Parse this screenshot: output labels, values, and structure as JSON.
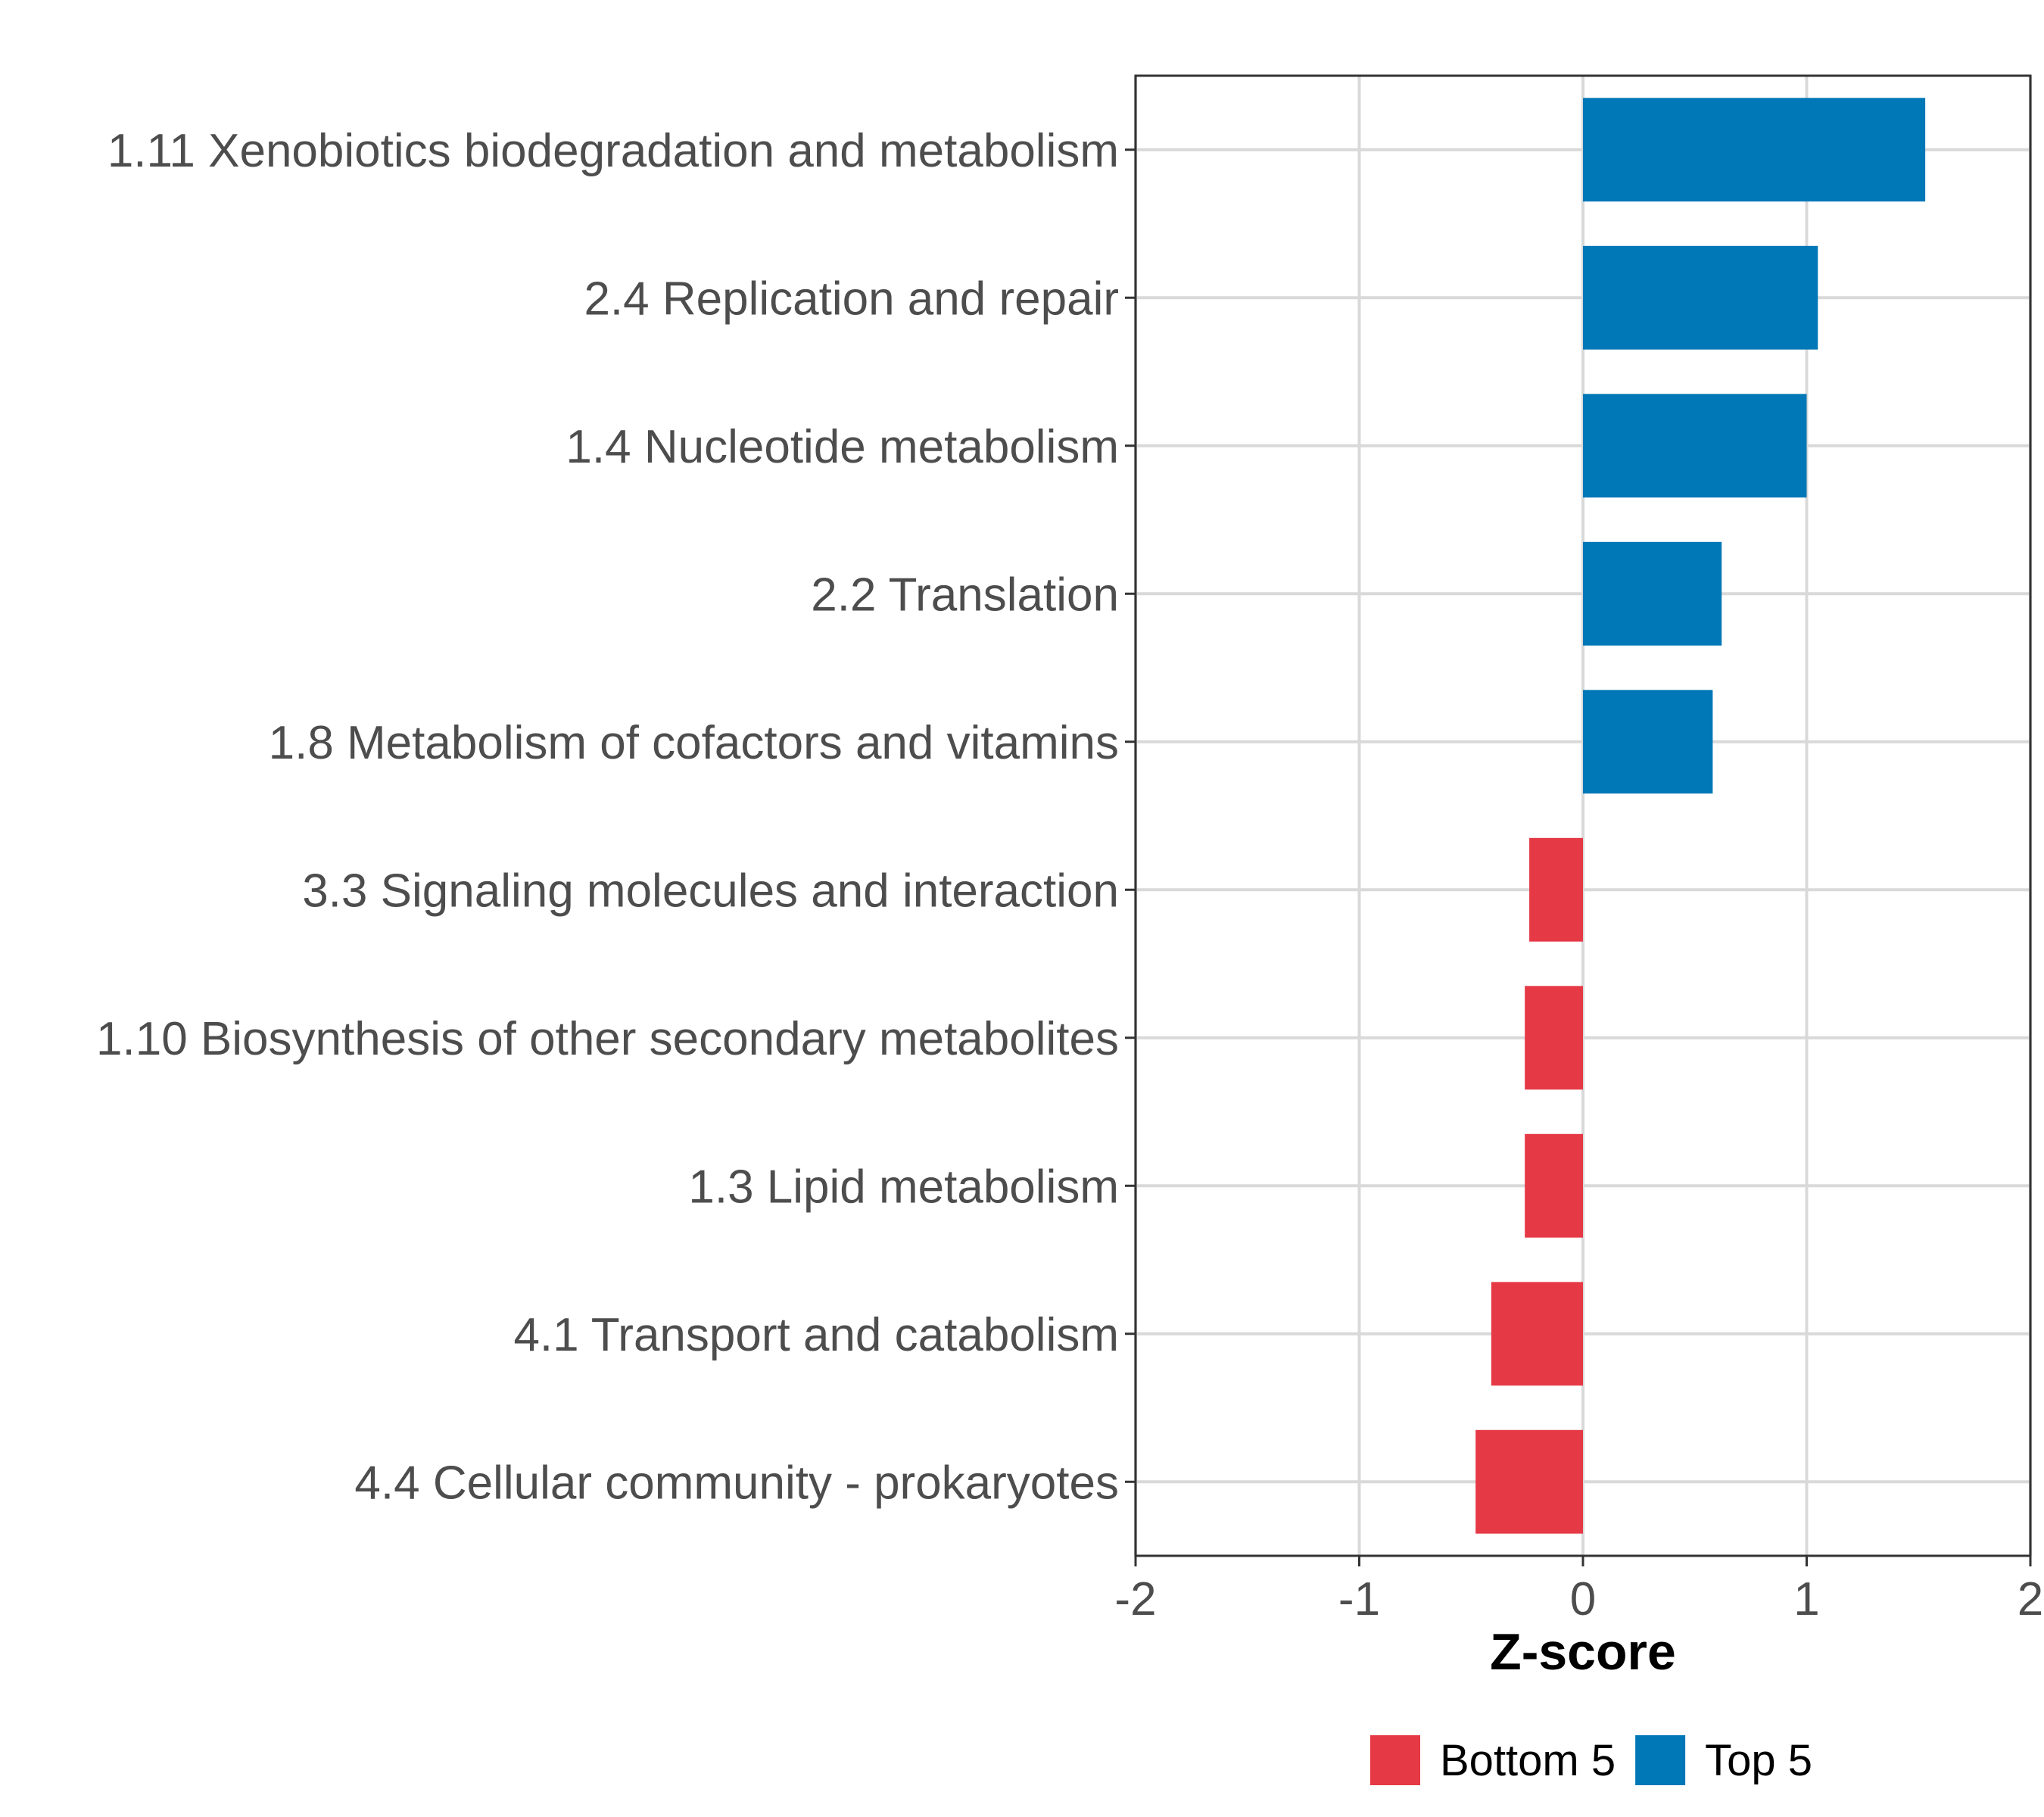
{
  "chart_data": {
    "type": "bar",
    "orientation": "horizontal",
    "title": "",
    "xlabel": "Z-score",
    "ylabel": "",
    "xlim": [
      -2,
      2
    ],
    "xticks": [
      -2,
      -1,
      0,
      1,
      2
    ],
    "xtick_labels": [
      "-2",
      "-1",
      "0",
      "1",
      "2"
    ],
    "grid": true,
    "legend_position": "bottom",
    "categories": [
      "1.11 Xenobiotics biodegradation and metabolism",
      "2.4 Replication and repair",
      "1.4 Nucleotide metabolism",
      "2.2 Translation",
      "1.8 Metabolism of cofactors and vitamins",
      "3.3 Signaling molecules and interaction",
      "1.10 Biosynthesis of other secondary metabolites",
      "1.3 Lipid metabolism",
      "4.1 Transport and catabolism",
      "4.4 Cellular community - prokaryotes"
    ],
    "values": [
      1.53,
      1.05,
      1.0,
      0.62,
      0.58,
      -0.24,
      -0.26,
      -0.26,
      -0.41,
      -0.48
    ],
    "groups": [
      "Top 5",
      "Top 5",
      "Top 5",
      "Top 5",
      "Top 5",
      "Bottom 5",
      "Bottom 5",
      "Bottom 5",
      "Bottom 5",
      "Bottom 5"
    ],
    "legend": [
      {
        "name": "Bottom 5",
        "color": "#e63946"
      },
      {
        "name": "Top 5",
        "color": "#0077b6"
      }
    ]
  }
}
